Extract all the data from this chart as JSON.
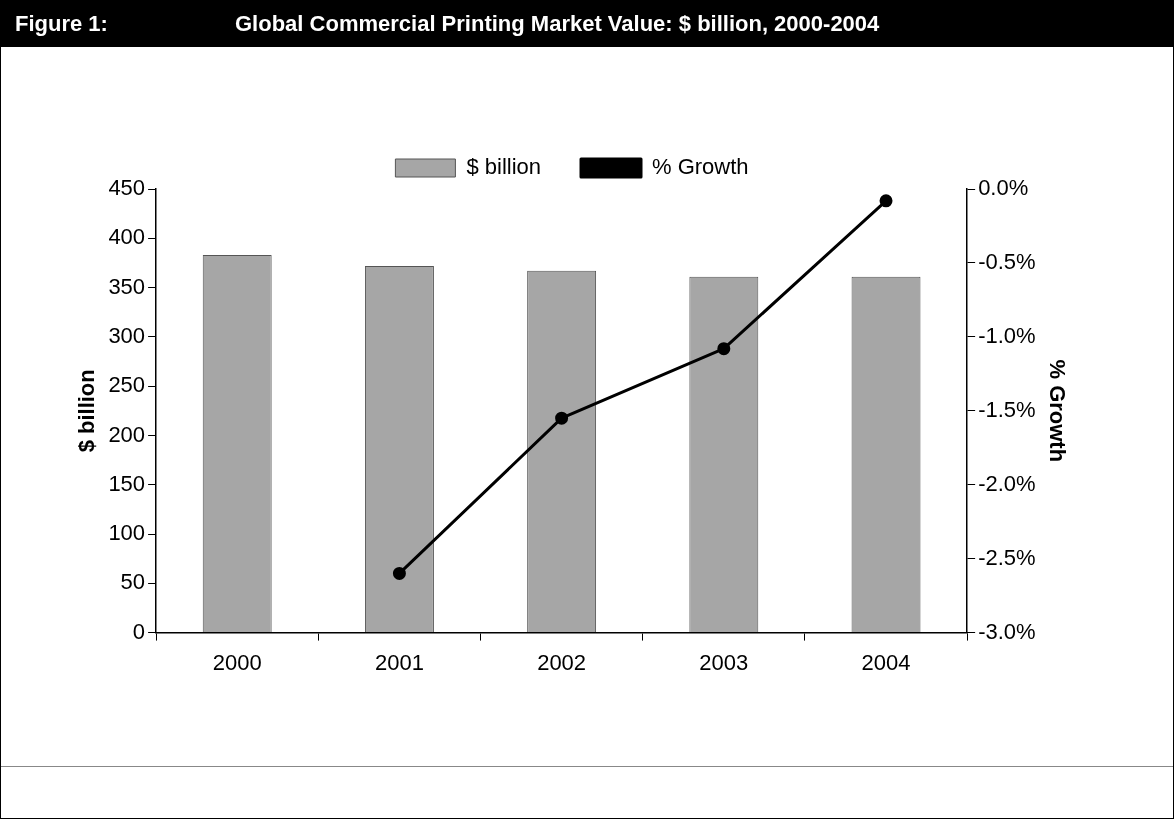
{
  "chart_data": {
    "type": "bar",
    "title": "Global Commercial Printing Market Value: $ billion, 2000-2004",
    "annotations": [
      "Figure 1:"
    ],
    "categories": [
      "2000",
      "2001",
      "2002",
      "2003",
      "2004"
    ],
    "series": [
      {
        "name": "$ billion",
        "color": "#a6a6a6",
        "values": [
          383,
          372,
          367,
          361,
          361
        ]
      },
      {
        "name": "% Growth",
        "type": "line",
        "axis": "y2",
        "color": "#000000",
        "values": [
          null,
          -2.6,
          -1.55,
          -1.08,
          -0.08
        ]
      }
    ],
    "ylabel": "$ billion",
    "y2label": "% Growth",
    "ylim": [
      0,
      450
    ],
    "yticks": [
      0,
      50,
      100,
      150,
      200,
      250,
      300,
      350,
      400,
      450
    ],
    "y2lim": [
      -3,
      0
    ],
    "y2ticks": [
      {
        "value": -3,
        "label": "-3.0%"
      },
      {
        "value": -2.5,
        "label": "-2.5%"
      },
      {
        "value": -2,
        "label": "-2.0%"
      },
      {
        "value": -1.5,
        "label": "-1.5%"
      },
      {
        "value": -1,
        "label": "-1.0%"
      },
      {
        "value": -0.5,
        "label": "-0.5%"
      },
      {
        "value": 0,
        "label": "0.0%"
      }
    ],
    "legend": "top",
    "marker": "circle",
    "grid": false
  }
}
